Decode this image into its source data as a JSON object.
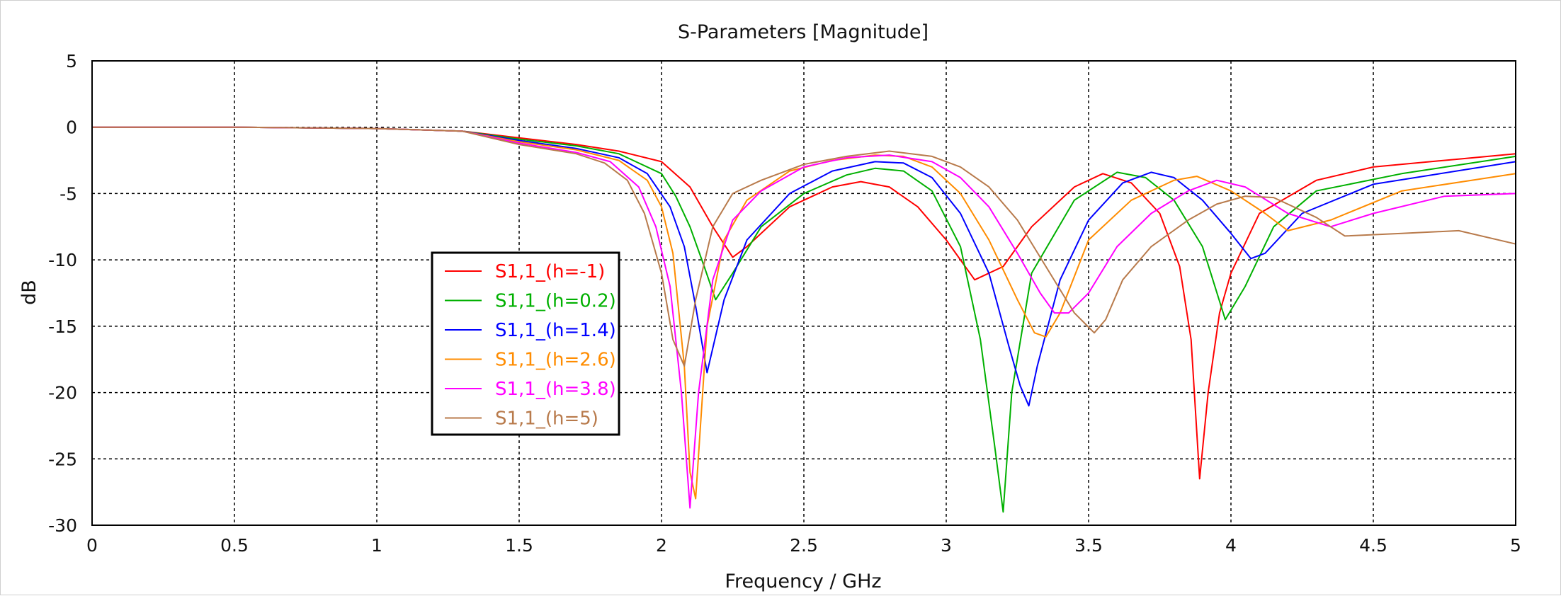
{
  "chart_data": {
    "type": "line",
    "title": "S-Parameters [Magnitude]",
    "xlabel": "Frequency / GHz",
    "ylabel": "dB",
    "xlim": [
      0,
      5
    ],
    "ylim": [
      -30,
      5
    ],
    "xticks": [
      0,
      0.5,
      1,
      1.5,
      2,
      2.5,
      3,
      3.5,
      4,
      4.5,
      5
    ],
    "xtick_labels": [
      "0",
      "0.5",
      "1",
      "1.5",
      "2",
      "2.5",
      "3",
      "3.5",
      "4",
      "4.5",
      "5"
    ],
    "yticks": [
      5,
      0,
      -5,
      -10,
      -15,
      -20,
      -25,
      -30
    ],
    "ytick_labels": [
      "5",
      "0",
      "-5",
      "-10",
      "-15",
      "-20",
      "-25",
      "-30"
    ],
    "grid": true,
    "legend_position": "left-middle",
    "series": [
      {
        "name": "S1,1_(h=-1)",
        "color": "#ff0000",
        "x": [
          0,
          0.5,
          1.0,
          1.3,
          1.5,
          1.7,
          1.85,
          2.0,
          2.1,
          2.18,
          2.25,
          2.3,
          2.45,
          2.6,
          2.7,
          2.8,
          2.9,
          3.0,
          3.1,
          3.2,
          3.3,
          3.45,
          3.55,
          3.65,
          3.75,
          3.82,
          3.86,
          3.89,
          3.92,
          3.96,
          4.0,
          4.1,
          4.3,
          4.5,
          4.8,
          5.0
        ],
        "y": [
          0,
          0,
          -0.1,
          -0.3,
          -0.8,
          -1.3,
          -1.8,
          -2.6,
          -4.5,
          -7.5,
          -9.8,
          -9.0,
          -6.0,
          -4.5,
          -4.1,
          -4.5,
          -6.0,
          -8.5,
          -11.5,
          -10.5,
          -7.5,
          -4.5,
          -3.5,
          -4.2,
          -6.5,
          -10.5,
          -16.0,
          -26.5,
          -20.0,
          -14.0,
          -11.0,
          -6.5,
          -4.0,
          -3.0,
          -2.4,
          -2.0
        ]
      },
      {
        "name": "S1,1_(h=0.2)",
        "color": "#00b000",
        "x": [
          0,
          0.5,
          1.0,
          1.3,
          1.5,
          1.7,
          1.85,
          2.0,
          2.05,
          2.1,
          2.15,
          2.19,
          2.25,
          2.35,
          2.5,
          2.65,
          2.75,
          2.85,
          2.95,
          3.05,
          3.12,
          3.17,
          3.2,
          3.23,
          3.3,
          3.45,
          3.6,
          3.7,
          3.8,
          3.9,
          3.98,
          4.05,
          4.15,
          4.3,
          4.6,
          5.0
        ],
        "y": [
          0,
          0,
          -0.1,
          -0.3,
          -0.9,
          -1.4,
          -2.0,
          -3.5,
          -5.2,
          -7.5,
          -10.5,
          -13.0,
          -11.0,
          -7.5,
          -5.0,
          -3.6,
          -3.1,
          -3.3,
          -4.8,
          -9.0,
          -16.0,
          -24.0,
          -29.0,
          -20.0,
          -11.0,
          -5.5,
          -3.4,
          -3.8,
          -5.5,
          -9.0,
          -14.5,
          -12.0,
          -7.5,
          -4.8,
          -3.5,
          -2.2
        ]
      },
      {
        "name": "S1,1_(h=1.4)",
        "color": "#0000ff",
        "x": [
          0,
          0.5,
          1.0,
          1.3,
          1.5,
          1.7,
          1.85,
          1.95,
          2.03,
          2.08,
          2.12,
          2.16,
          2.22,
          2.3,
          2.45,
          2.6,
          2.75,
          2.85,
          2.95,
          3.05,
          3.15,
          3.22,
          3.26,
          3.29,
          3.32,
          3.4,
          3.5,
          3.62,
          3.72,
          3.8,
          3.9,
          4.0,
          4.07,
          4.12,
          4.25,
          4.5,
          5.0
        ],
        "y": [
          0,
          0,
          -0.1,
          -0.3,
          -1.0,
          -1.6,
          -2.3,
          -3.5,
          -6.0,
          -9.0,
          -13.5,
          -18.5,
          -13.0,
          -8.5,
          -5.0,
          -3.3,
          -2.6,
          -2.7,
          -3.8,
          -6.5,
          -11.0,
          -16.5,
          -19.5,
          -21.0,
          -18.0,
          -11.5,
          -7.0,
          -4.2,
          -3.4,
          -3.8,
          -5.5,
          -8.0,
          -9.9,
          -9.5,
          -6.5,
          -4.3,
          -2.6
        ]
      },
      {
        "name": "S1,1_(h=2.6)",
        "color": "#ff8c00",
        "x": [
          0,
          0.5,
          1.0,
          1.3,
          1.5,
          1.7,
          1.85,
          1.95,
          2.0,
          2.04,
          2.08,
          2.1,
          2.12,
          2.16,
          2.22,
          2.3,
          2.45,
          2.6,
          2.75,
          2.85,
          2.95,
          3.05,
          3.15,
          3.25,
          3.31,
          3.35,
          3.4,
          3.5,
          3.65,
          3.8,
          3.88,
          4.0,
          4.12,
          4.2,
          4.35,
          4.6,
          5.0
        ],
        "y": [
          0,
          0,
          -0.1,
          -0.3,
          -1.1,
          -1.7,
          -2.5,
          -4.0,
          -6.0,
          -9.5,
          -18.0,
          -26.0,
          -28.0,
          -15.0,
          -8.5,
          -5.5,
          -3.3,
          -2.5,
          -2.1,
          -2.2,
          -3.0,
          -5.0,
          -8.5,
          -13.0,
          -15.5,
          -15.8,
          -14.0,
          -8.5,
          -5.5,
          -4.0,
          -3.7,
          -4.8,
          -6.5,
          -7.8,
          -7.0,
          -4.8,
          -3.5
        ]
      },
      {
        "name": "S1,1_(h=3.8)",
        "color": "#ff00ff",
        "x": [
          0,
          0.5,
          1.0,
          1.3,
          1.5,
          1.7,
          1.82,
          1.92,
          1.98,
          2.03,
          2.07,
          2.1,
          2.13,
          2.18,
          2.25,
          2.35,
          2.5,
          2.65,
          2.8,
          2.95,
          3.05,
          3.15,
          3.25,
          3.33,
          3.38,
          3.43,
          3.5,
          3.6,
          3.72,
          3.85,
          3.95,
          4.05,
          4.2,
          4.35,
          4.5,
          4.75,
          5.0
        ],
        "y": [
          0,
          0,
          -0.1,
          -0.3,
          -1.2,
          -1.9,
          -2.6,
          -4.5,
          -7.5,
          -12.0,
          -20.0,
          -28.7,
          -20.0,
          -11.5,
          -7.0,
          -4.8,
          -3.0,
          -2.3,
          -2.1,
          -2.6,
          -3.8,
          -6.0,
          -9.5,
          -12.5,
          -14.0,
          -14.0,
          -12.5,
          -9.0,
          -6.5,
          -4.8,
          -4.0,
          -4.5,
          -6.5,
          -7.5,
          -6.5,
          -5.2,
          -5.0
        ]
      },
      {
        "name": "S1,1_(h=5)",
        "color": "#b87a4b",
        "x": [
          0,
          0.5,
          1.0,
          1.3,
          1.5,
          1.7,
          1.8,
          1.88,
          1.94,
          2.0,
          2.04,
          2.08,
          2.12,
          2.18,
          2.25,
          2.35,
          2.5,
          2.65,
          2.8,
          2.95,
          3.05,
          3.15,
          3.25,
          3.35,
          3.45,
          3.52,
          3.56,
          3.62,
          3.72,
          3.85,
          3.95,
          4.05,
          4.15,
          4.3,
          4.4,
          4.6,
          4.8,
          5.0
        ],
        "y": [
          0,
          0,
          -0.1,
          -0.3,
          -1.3,
          -2.0,
          -2.7,
          -4.0,
          -6.5,
          -11.0,
          -16.0,
          -18.0,
          -13.0,
          -7.5,
          -5.0,
          -4.0,
          -2.8,
          -2.2,
          -1.8,
          -2.2,
          -3.0,
          -4.5,
          -7.0,
          -10.5,
          -14.0,
          -15.5,
          -14.5,
          -11.5,
          -9.0,
          -7.0,
          -5.8,
          -5.2,
          -5.3,
          -6.8,
          -8.2,
          -8.0,
          -7.8,
          -8.8
        ]
      }
    ]
  }
}
